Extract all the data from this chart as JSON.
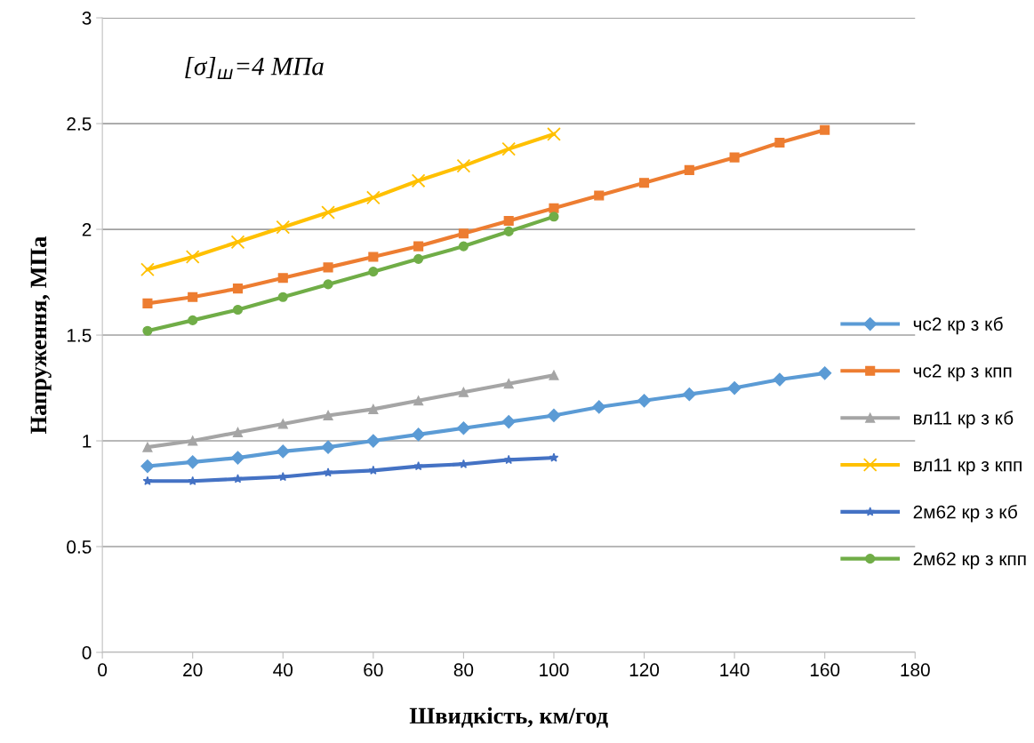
{
  "chart_data": {
    "type": "line",
    "xlabel": "Швидкість, км/год",
    "ylabel": "Напруження, МПа",
    "annotations": [
      "[σ]$_{ш}$=4 МПа"
    ],
    "xlim": [
      0,
      180
    ],
    "xticks": [
      0,
      20,
      40,
      60,
      80,
      100,
      120,
      140,
      160,
      180
    ],
    "ylim": [
      0,
      3
    ],
    "yticks": [
      0,
      0.5,
      1,
      1.5,
      2,
      2.5,
      3
    ],
    "grid": "y",
    "legend": "right",
    "line_style": "solid",
    "series": [
      {
        "name": "чс2 кр з кб",
        "color": "#5b9bd5",
        "marker": "diamond",
        "x": [
          10,
          20,
          30,
          40,
          50,
          60,
          70,
          80,
          90,
          100,
          110,
          120,
          130,
          140,
          150,
          160
        ],
        "values": [
          0.88,
          0.9,
          0.92,
          0.95,
          0.97,
          1.0,
          1.03,
          1.06,
          1.09,
          1.12,
          1.16,
          1.19,
          1.22,
          1.25,
          1.29,
          1.32
        ]
      },
      {
        "name": "чс2 кр з кпп",
        "color": "#ed7d31",
        "marker": "square",
        "x": [
          10,
          20,
          30,
          40,
          50,
          60,
          70,
          80,
          90,
          100,
          110,
          120,
          130,
          140,
          150,
          160
        ],
        "values": [
          1.65,
          1.68,
          1.72,
          1.77,
          1.82,
          1.87,
          1.92,
          1.98,
          2.04,
          2.1,
          2.16,
          2.22,
          2.28,
          2.34,
          2.41,
          2.47
        ]
      },
      {
        "name": "вл11 кр з кб",
        "color": "#a5a5a5",
        "marker": "triangle",
        "x": [
          10,
          20,
          30,
          40,
          50,
          60,
          70,
          80,
          90,
          100
        ],
        "values": [
          0.97,
          1.0,
          1.04,
          1.08,
          1.12,
          1.15,
          1.19,
          1.23,
          1.27,
          1.31
        ]
      },
      {
        "name": "вл11 кр з кпп",
        "color": "#ffc000",
        "marker": "cross",
        "x": [
          10,
          20,
          30,
          40,
          50,
          60,
          70,
          80,
          90,
          100
        ],
        "values": [
          1.81,
          1.87,
          1.94,
          2.01,
          2.08,
          2.15,
          2.23,
          2.3,
          2.38,
          2.45
        ]
      },
      {
        "name": "2м62 кр з кб",
        "color": "#4472c4",
        "marker": "star",
        "x": [
          10,
          20,
          30,
          40,
          50,
          60,
          70,
          80,
          90,
          100
        ],
        "values": [
          0.81,
          0.81,
          0.82,
          0.83,
          0.85,
          0.86,
          0.88,
          0.89,
          0.91,
          0.92
        ]
      },
      {
        "name": "2м62 кр з кпп",
        "color": "#70ad47",
        "marker": "circle",
        "x": [
          10,
          20,
          30,
          40,
          50,
          60,
          70,
          80,
          90,
          100
        ],
        "values": [
          1.52,
          1.57,
          1.62,
          1.68,
          1.74,
          1.8,
          1.86,
          1.92,
          1.99,
          2.06
        ]
      }
    ]
  }
}
